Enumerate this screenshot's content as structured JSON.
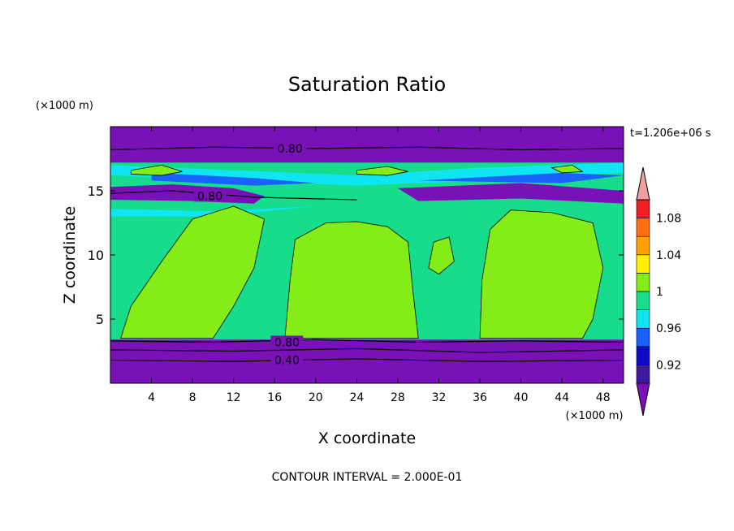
{
  "chart_data": {
    "type": "heatmap",
    "title": "Saturation Ratio",
    "xlabel": "X coordinate",
    "ylabel": "Z coordinate",
    "x_unit": "(×1000 m)",
    "y_unit": "(×1000 m)",
    "time_label": "t=1.206e+06 s",
    "footer": "CONTOUR INTERVAL = 2.000E-01",
    "xlim": [
      0,
      50
    ],
    "ylim": [
      0,
      20
    ],
    "x_ticks": [
      4,
      8,
      12,
      16,
      20,
      24,
      28,
      32,
      36,
      40,
      44,
      48
    ],
    "y_ticks": [
      5,
      10,
      15
    ],
    "contour_labels": [
      {
        "text": "0.80",
        "x": 17.5,
        "y": 18.3
      },
      {
        "text": "0.80",
        "x": 9.7,
        "y": 14.6
      },
      {
        "text": "0.80",
        "x": 17.2,
        "y": 3.2
      },
      {
        "text": "0.40",
        "x": 17.2,
        "y": 1.8
      }
    ],
    "colorbar": {
      "levels": [
        0.92,
        0.96,
        1,
        1.04,
        1.08
      ],
      "tick_labels": [
        "0.92",
        "0.96",
        "1",
        "1.04",
        "1.08"
      ],
      "colors": [
        "#7a10b8",
        "#3c1aa0",
        "#0c0cc8",
        "#1a62ff",
        "#10e6f2",
        "#16dc8c",
        "#84ec16",
        "#fff000",
        "#ffa000",
        "#ff6e10",
        "#f02020",
        "#f0a0a0"
      ]
    },
    "zone_colors": {
      "dry": "#7a10b8",
      "mid": "#16dc8c",
      "supersat": "#84ec16",
      "cyan": "#10e6f2",
      "blue": "#1a62ff"
    }
  }
}
